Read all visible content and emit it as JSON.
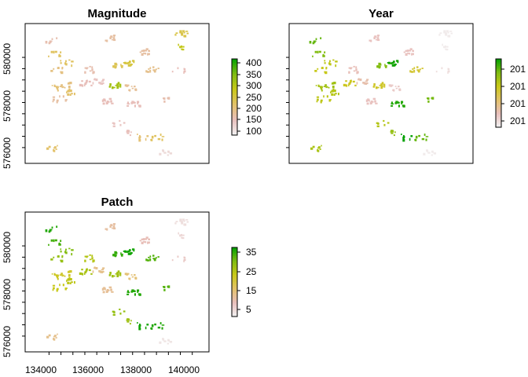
{
  "chart_data": [
    {
      "type": "heatmap",
      "title": "Magnitude",
      "xlim": [
        133000,
        140700
      ],
      "ylim": [
        575300,
        581500
      ],
      "xticks": [
        134000,
        136000,
        138000,
        140000
      ],
      "yticks": [
        576000,
        578000,
        580000
      ],
      "show_x_tick_labels": false,
      "show_y_tick_labels": true,
      "legend": {
        "ticks": [
          "100",
          "150",
          "200",
          "250",
          "300",
          "350",
          "400"
        ],
        "min": 75,
        "max": 440
      },
      "palette": [
        "#f2f2f2",
        "#e8bfbc",
        "#e3c26a",
        "#c9c818",
        "#7fbc12",
        "#00a000"
      ],
      "patches": [
        {
          "x": 134100,
          "y": 580800,
          "v": 160
        },
        {
          "x": 134200,
          "y": 580200,
          "v": 230
        },
        {
          "x": 134700,
          "y": 579800,
          "v": 230
        },
        {
          "x": 134300,
          "y": 579500,
          "v": 200
        },
        {
          "x": 134250,
          "y": 578700,
          "v": 210
        },
        {
          "x": 134600,
          "y": 578800,
          "v": 200
        },
        {
          "x": 134900,
          "y": 578500,
          "v": 220
        },
        {
          "x": 134400,
          "y": 578200,
          "v": 170
        },
        {
          "x": 136500,
          "y": 580900,
          "v": 170
        },
        {
          "x": 135700,
          "y": 579500,
          "v": 160
        },
        {
          "x": 135500,
          "y": 578900,
          "v": 150
        },
        {
          "x": 136000,
          "y": 579000,
          "v": 140
        },
        {
          "x": 136900,
          "y": 579700,
          "v": 240
        },
        {
          "x": 137300,
          "y": 579800,
          "v": 260
        },
        {
          "x": 136700,
          "y": 578800,
          "v": 330
        },
        {
          "x": 137400,
          "y": 578700,
          "v": 180
        },
        {
          "x": 138000,
          "y": 580300,
          "v": 170
        },
        {
          "x": 138300,
          "y": 579500,
          "v": 190
        },
        {
          "x": 137500,
          "y": 578000,
          "v": 150
        },
        {
          "x": 136400,
          "y": 578100,
          "v": 150
        },
        {
          "x": 139500,
          "y": 581100,
          "v": 250
        },
        {
          "x": 139600,
          "y": 580500,
          "v": 300
        },
        {
          "x": 139400,
          "y": 579500,
          "v": 150
        },
        {
          "x": 138800,
          "y": 578200,
          "v": 160
        },
        {
          "x": 136900,
          "y": 577100,
          "v": 140
        },
        {
          "x": 137300,
          "y": 576700,
          "v": 150
        },
        {
          "x": 137900,
          "y": 576500,
          "v": 210
        },
        {
          "x": 138500,
          "y": 576500,
          "v": 230
        },
        {
          "x": 138800,
          "y": 575800,
          "v": 110
        },
        {
          "x": 134100,
          "y": 576000,
          "v": 220
        }
      ]
    },
    {
      "type": "heatmap",
      "title": "Year",
      "xlim": [
        133000,
        140700
      ],
      "ylim": [
        575300,
        581500
      ],
      "xticks": [
        134000,
        136000,
        138000,
        140000
      ],
      "yticks": [
        576000,
        578000,
        580000
      ],
      "show_x_tick_labels": false,
      "show_y_tick_labels": true,
      "legend": {
        "ticks": [
          "201",
          "201",
          "201",
          "201"
        ],
        "min": 0,
        "max": 3.8
      },
      "palette": [
        "#f2f2f2",
        "#e8bfbc",
        "#e3c26a",
        "#c9c818",
        "#7fbc12",
        "#00a000"
      ],
      "patches": [
        {
          "x": 134100,
          "y": 580800,
          "v": 3.2
        },
        {
          "x": 134200,
          "y": 580200,
          "v": 3.0
        },
        {
          "x": 134700,
          "y": 579800,
          "v": 2.4
        },
        {
          "x": 134300,
          "y": 579500,
          "v": 2.3
        },
        {
          "x": 134250,
          "y": 578700,
          "v": 2.6
        },
        {
          "x": 134600,
          "y": 578800,
          "v": 2.7
        },
        {
          "x": 134900,
          "y": 578500,
          "v": 2.5
        },
        {
          "x": 134400,
          "y": 578200,
          "v": 2.4
        },
        {
          "x": 136500,
          "y": 580900,
          "v": 0.7
        },
        {
          "x": 135700,
          "y": 579500,
          "v": 0.8
        },
        {
          "x": 135500,
          "y": 578900,
          "v": 2.2
        },
        {
          "x": 136000,
          "y": 579000,
          "v": 0.9
        },
        {
          "x": 136900,
          "y": 579700,
          "v": 3.0
        },
        {
          "x": 137300,
          "y": 579800,
          "v": 3.7
        },
        {
          "x": 136700,
          "y": 578800,
          "v": 2.1
        },
        {
          "x": 137400,
          "y": 578700,
          "v": 0.6
        },
        {
          "x": 138000,
          "y": 580300,
          "v": 0.7
        },
        {
          "x": 138300,
          "y": 579500,
          "v": 2.0
        },
        {
          "x": 137500,
          "y": 578000,
          "v": 3.6
        },
        {
          "x": 136400,
          "y": 578100,
          "v": 0.7
        },
        {
          "x": 139500,
          "y": 581100,
          "v": 0.1
        },
        {
          "x": 139600,
          "y": 580500,
          "v": 0.1
        },
        {
          "x": 139400,
          "y": 579500,
          "v": 0.3
        },
        {
          "x": 138800,
          "y": 578200,
          "v": 3.1
        },
        {
          "x": 136900,
          "y": 577100,
          "v": 2.5
        },
        {
          "x": 137300,
          "y": 576700,
          "v": 2.8
        },
        {
          "x": 137900,
          "y": 576500,
          "v": 3.8
        },
        {
          "x": 138500,
          "y": 576500,
          "v": 3.2
        },
        {
          "x": 138800,
          "y": 575800,
          "v": 0.1
        },
        {
          "x": 134100,
          "y": 576000,
          "v": 2.6
        }
      ]
    },
    {
      "type": "heatmap",
      "title": "Patch",
      "xlim": [
        133000,
        140700
      ],
      "ylim": [
        575300,
        581500
      ],
      "xticks": [
        134000,
        136000,
        138000,
        140000
      ],
      "yticks": [
        576000,
        578000,
        580000
      ],
      "show_x_tick_labels": true,
      "show_y_tick_labels": true,
      "legend": {
        "ticks": [
          "5",
          "15",
          "25",
          "35"
        ],
        "min": 0,
        "max": 38
      },
      "palette": [
        "#f2f2f2",
        "#e8bfbc",
        "#e3c26a",
        "#c9c818",
        "#7fbc12",
        "#00a000"
      ],
      "patches": [
        {
          "x": 134100,
          "y": 580800,
          "v": 36
        },
        {
          "x": 134200,
          "y": 580200,
          "v": 34
        },
        {
          "x": 134700,
          "y": 579800,
          "v": 30
        },
        {
          "x": 134300,
          "y": 579500,
          "v": 28
        },
        {
          "x": 134250,
          "y": 578700,
          "v": 22
        },
        {
          "x": 134600,
          "y": 578800,
          "v": 21
        },
        {
          "x": 134900,
          "y": 578500,
          "v": 24
        },
        {
          "x": 134400,
          "y": 578200,
          "v": 23
        },
        {
          "x": 136500,
          "y": 580900,
          "v": 10
        },
        {
          "x": 135700,
          "y": 579500,
          "v": 25
        },
        {
          "x": 135500,
          "y": 578900,
          "v": 26
        },
        {
          "x": 136000,
          "y": 579000,
          "v": 12
        },
        {
          "x": 136900,
          "y": 579700,
          "v": 35
        },
        {
          "x": 137300,
          "y": 579800,
          "v": 37
        },
        {
          "x": 136700,
          "y": 578800,
          "v": 27
        },
        {
          "x": 137400,
          "y": 578700,
          "v": 14
        },
        {
          "x": 138000,
          "y": 580300,
          "v": 8
        },
        {
          "x": 138300,
          "y": 579500,
          "v": 33
        },
        {
          "x": 137500,
          "y": 578000,
          "v": 36
        },
        {
          "x": 136400,
          "y": 578100,
          "v": 11
        },
        {
          "x": 139500,
          "y": 581100,
          "v": 3
        },
        {
          "x": 139600,
          "y": 580500,
          "v": 4
        },
        {
          "x": 139400,
          "y": 579500,
          "v": 6
        },
        {
          "x": 138800,
          "y": 578200,
          "v": 33
        },
        {
          "x": 136900,
          "y": 577100,
          "v": 28
        },
        {
          "x": 137300,
          "y": 576700,
          "v": 27
        },
        {
          "x": 137900,
          "y": 576500,
          "v": 37
        },
        {
          "x": 138500,
          "y": 576500,
          "v": 36
        },
        {
          "x": 138800,
          "y": 575800,
          "v": 2
        },
        {
          "x": 134100,
          "y": 576000,
          "v": 12
        }
      ]
    }
  ]
}
